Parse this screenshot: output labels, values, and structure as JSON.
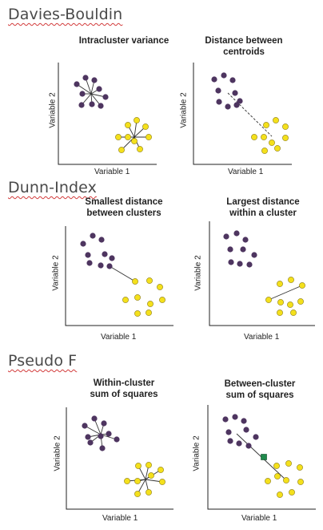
{
  "sections": [
    {
      "title": "Davies-Bouldin",
      "panels": [
        {
          "title_lines": [
            "Intracluster variance"
          ],
          "xlabel": "Variable 1",
          "ylabel": "Variable 2"
        },
        {
          "title_lines": [
            "Distance between",
            "centroids"
          ],
          "xlabel": "Variable 1",
          "ylabel": "Variable 2"
        }
      ]
    },
    {
      "title": "Dunn-Index",
      "panels": [
        {
          "title_lines": [
            "Smallest distance",
            "between clusters"
          ],
          "xlabel": "Variable 1",
          "ylabel": "Variable 2"
        },
        {
          "title_lines": [
            "Largest distance",
            "within a cluster"
          ],
          "xlabel": "Variable 1",
          "ylabel": "Variable 2"
        }
      ]
    },
    {
      "title": "Pseudo F",
      "panels": [
        {
          "title_lines": [
            "Within-cluster",
            "sum of squares"
          ],
          "xlabel": "Variable 1",
          "ylabel": "Variable 2"
        },
        {
          "title_lines": [
            "Between-cluster",
            "sum of squares"
          ],
          "xlabel": "Variable 1",
          "ylabel": "Variable 2"
        }
      ]
    }
  ],
  "colors": {
    "purple_cluster": "#4e3560",
    "yellow_cluster": "#f4e01c",
    "yellow_stroke": "#8a7a10",
    "centroid_marker": "#1f8a4c",
    "axis": "#222222",
    "section_title": "#4a4a4a"
  }
}
